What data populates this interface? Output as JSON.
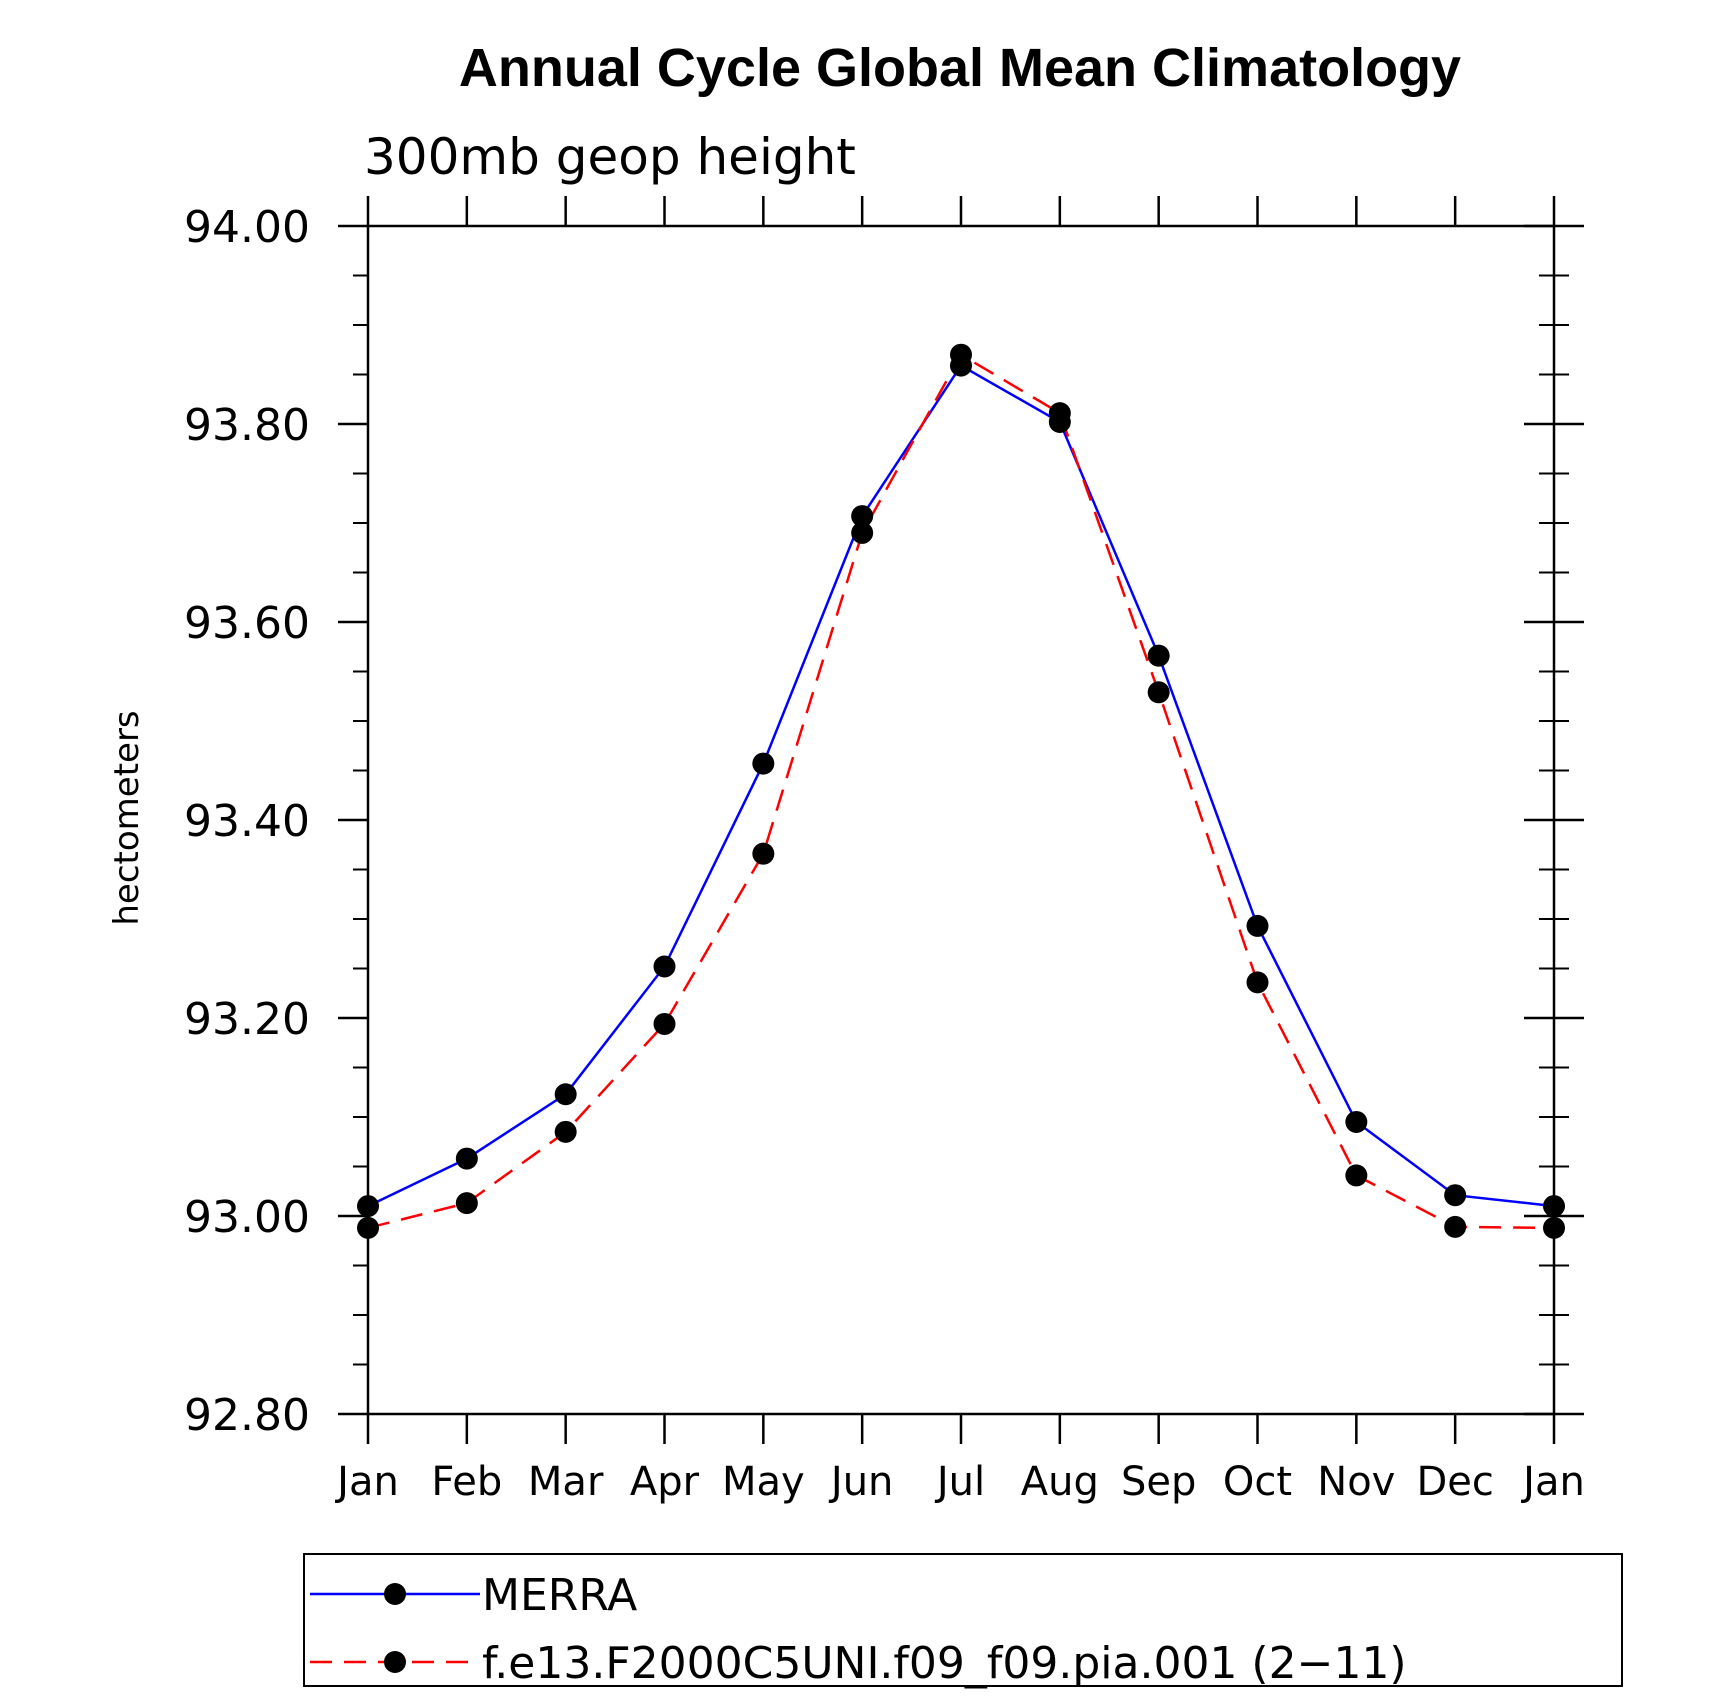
{
  "chart_data": {
    "type": "line",
    "title": "Annual Cycle Global Mean Climatology",
    "subtitle": "300mb geop height",
    "xlabel": "",
    "ylabel": "hectometers",
    "categories": [
      "Jan",
      "Feb",
      "Mar",
      "Apr",
      "May",
      "Jun",
      "Jul",
      "Aug",
      "Sep",
      "Oct",
      "Nov",
      "Dec",
      "Jan"
    ],
    "ylim": [
      92.8,
      94.0
    ],
    "yticks": [
      "92.80",
      "93.00",
      "93.20",
      "93.40",
      "93.60",
      "93.80",
      "94.00"
    ],
    "legend_position": "bottom",
    "grid": false,
    "series": [
      {
        "name": "MERRA",
        "color": "#0000ff",
        "dash": "solid",
        "marker": "filled-circle",
        "values": [
          93.01,
          93.058,
          93.123,
          93.252,
          93.457,
          93.707,
          93.859,
          93.802,
          93.566,
          93.293,
          93.095,
          93.021,
          93.01
        ]
      },
      {
        "name": "f.e13.F2000C5UNI.f09_f09.pia.001 (2−11)",
        "color": "#ff0000",
        "dash": "dashed",
        "marker": "filled-circle",
        "values": [
          92.988,
          93.013,
          93.085,
          93.194,
          93.366,
          93.69,
          93.87,
          93.811,
          93.529,
          93.236,
          93.041,
          92.989,
          92.988
        ]
      }
    ]
  }
}
